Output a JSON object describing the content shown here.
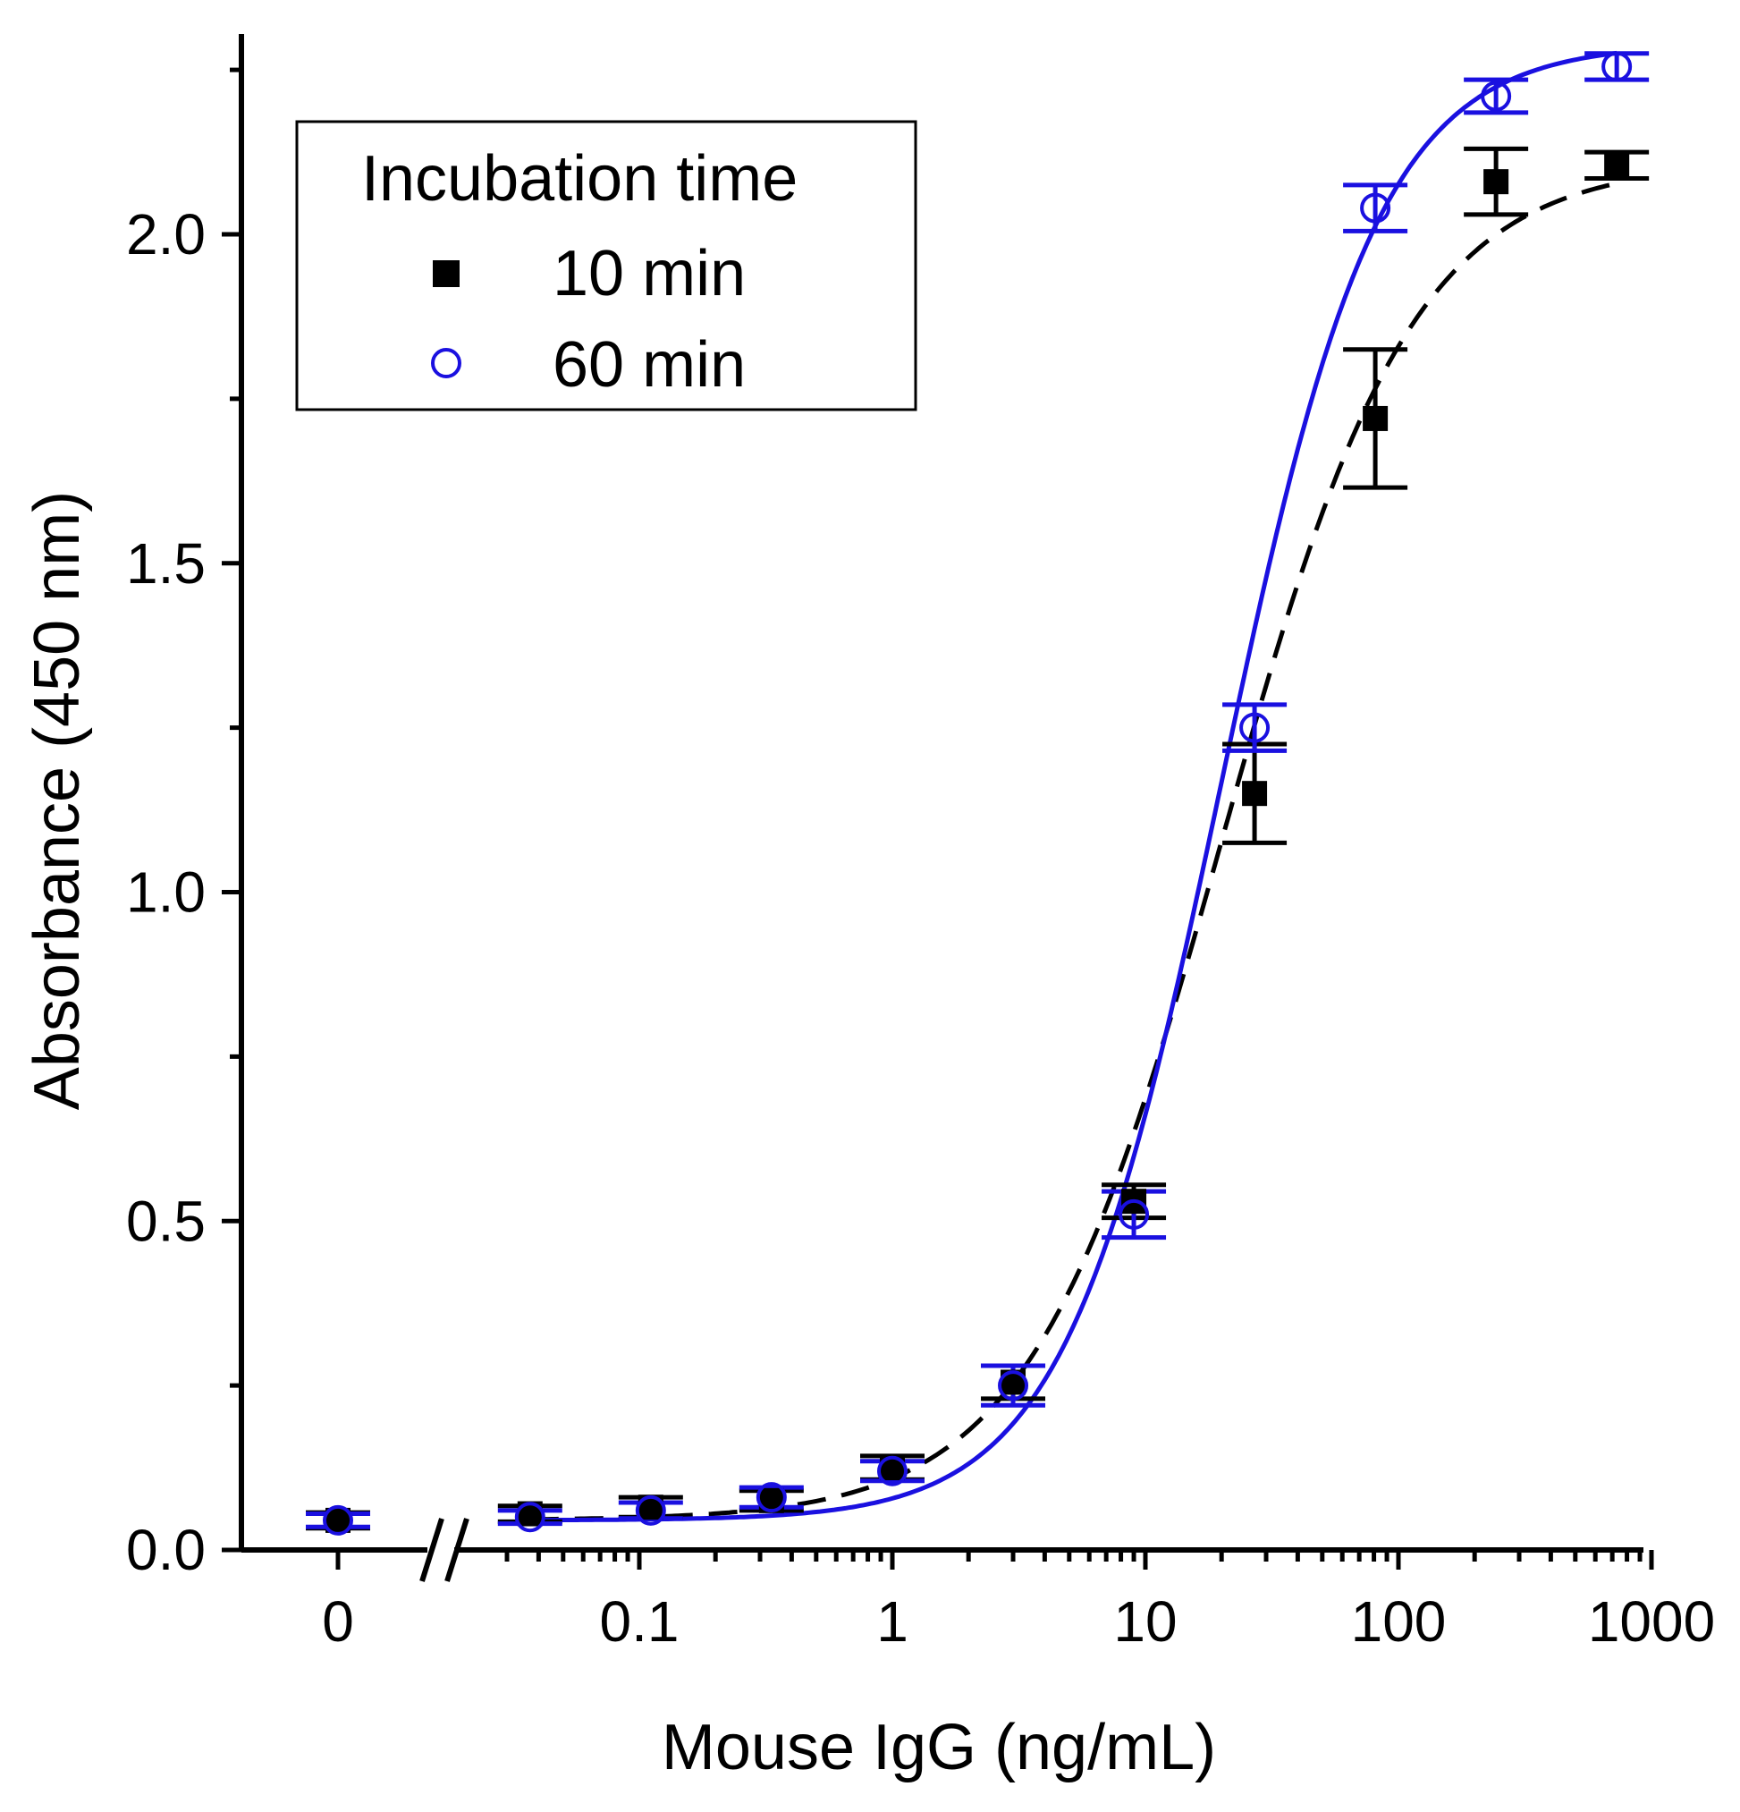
{
  "chart_data": {
    "type": "scatter",
    "title": "",
    "xlabel": "Mouse IgG (ng/mL)",
    "ylabel": "Absorbance (450 nm)",
    "x_scale": "log with axis break; zero plotted separately",
    "ylim": [
      0,
      2.25
    ],
    "xlim": [
      0.02,
      1000
    ],
    "x_ticks": [
      "0",
      "0.1",
      "1",
      "10",
      "100",
      "1000"
    ],
    "y_ticks": [
      "0.0",
      "0.5",
      "1.0",
      "1.5",
      "2.0"
    ],
    "grid": false,
    "legend": {
      "title": "Incubation time",
      "placement": "top-left"
    },
    "series": [
      {
        "name": "10 min",
        "color": "#000000",
        "marker": "filled-square",
        "fit": "dashed sigmoid",
        "points": [
          {
            "x": 0,
            "y": 0.045,
            "err": 0.012
          },
          {
            "x": 0.037,
            "y": 0.055,
            "err": 0.012
          },
          {
            "x": 0.111,
            "y": 0.065,
            "err": 0.015
          },
          {
            "x": 0.333,
            "y": 0.075,
            "err": 0.015
          },
          {
            "x": 1.0,
            "y": 0.125,
            "err": 0.018
          },
          {
            "x": 3.0,
            "y": 0.255,
            "err": 0.025
          },
          {
            "x": 9.0,
            "y": 0.53,
            "err": 0.025
          },
          {
            "x": 27.0,
            "y": 1.15,
            "err": 0.075
          },
          {
            "x": 81.0,
            "y": 1.72,
            "err": 0.105
          },
          {
            "x": 243.0,
            "y": 2.08,
            "err": 0.05
          },
          {
            "x": 729.0,
            "y": 2.105,
            "err": 0.02
          }
        ],
        "fit_params": {
          "bottom": 0.045,
          "top": 2.11,
          "ec50": 20,
          "hill": 1.15
        }
      },
      {
        "name": "60 min",
        "color": "#1a10e0",
        "marker": "open-circle",
        "fit": "solid sigmoid",
        "points": [
          {
            "x": 0,
            "y": 0.045,
            "err": 0.01
          },
          {
            "x": 0.037,
            "y": 0.05,
            "err": 0.01
          },
          {
            "x": 0.111,
            "y": 0.06,
            "err": 0.012
          },
          {
            "x": 0.333,
            "y": 0.08,
            "err": 0.015
          },
          {
            "x": 1.0,
            "y": 0.12,
            "err": 0.015
          },
          {
            "x": 3.0,
            "y": 0.25,
            "err": 0.03
          },
          {
            "x": 9.0,
            "y": 0.51,
            "err": 0.035
          },
          {
            "x": 27.0,
            "y": 1.25,
            "err": 0.035
          },
          {
            "x": 81.0,
            "y": 2.04,
            "err": 0.035
          },
          {
            "x": 243.0,
            "y": 2.21,
            "err": 0.025
          },
          {
            "x": 729.0,
            "y": 2.255,
            "err": 0.02
          }
        ],
        "fit_params": {
          "bottom": 0.045,
          "top": 2.29,
          "ec50": 20,
          "hill": 1.4
        }
      }
    ]
  }
}
